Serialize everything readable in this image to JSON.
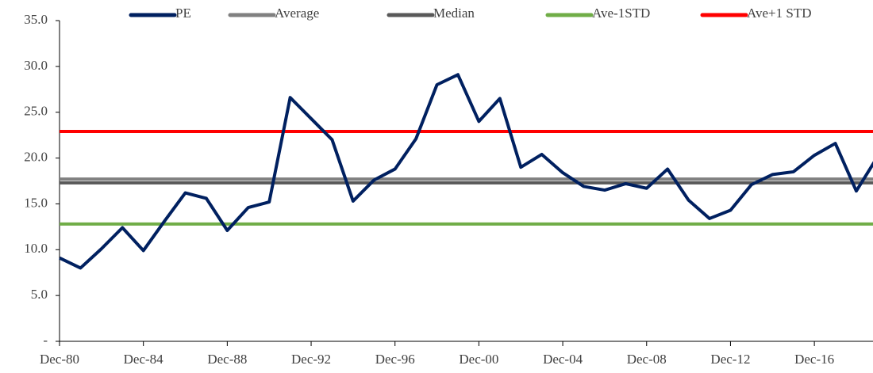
{
  "chart_data": {
    "type": "line",
    "categories": [
      "Dec-80",
      null,
      null,
      null,
      "Dec-84",
      null,
      null,
      null,
      "Dec-88",
      null,
      null,
      null,
      "Dec-92",
      null,
      null,
      null,
      "Dec-96",
      null,
      null,
      null,
      "Dec-00",
      null,
      null,
      null,
      "Dec-04",
      null,
      null,
      null,
      "Dec-08",
      null,
      null,
      null,
      "Dec-12",
      null,
      null,
      null,
      "Dec-16",
      null,
      null,
      null
    ],
    "series": [
      {
        "name": "PE",
        "color": "#002060",
        "values": [
          9.1,
          8.0,
          10.1,
          12.4,
          9.9,
          13.1,
          16.2,
          15.6,
          12.1,
          14.6,
          15.2,
          26.6,
          24.3,
          22.0,
          15.3,
          17.6,
          18.8,
          22.1,
          28.0,
          29.1,
          24.0,
          26.5,
          19.0,
          20.4,
          18.4,
          16.9,
          16.5,
          17.2,
          16.7,
          18.8,
          15.4,
          13.4,
          14.3,
          17.1,
          18.2,
          18.5,
          20.3,
          21.6,
          16.4,
          20.1
        ]
      },
      {
        "name": "Average",
        "color": "#808080",
        "values": [
          17.7,
          17.7,
          17.7,
          17.7,
          17.7,
          17.7,
          17.7,
          17.7,
          17.7,
          17.7,
          17.7,
          17.7,
          17.7,
          17.7,
          17.7,
          17.7,
          17.7,
          17.7,
          17.7,
          17.7,
          17.7,
          17.7,
          17.7,
          17.7,
          17.7,
          17.7,
          17.7,
          17.7,
          17.7,
          17.7,
          17.7,
          17.7,
          17.7,
          17.7,
          17.7,
          17.7,
          17.7,
          17.7,
          17.7,
          17.7
        ]
      },
      {
        "name": "Median",
        "color": "#595959",
        "values": [
          17.3,
          17.3,
          17.3,
          17.3,
          17.3,
          17.3,
          17.3,
          17.3,
          17.3,
          17.3,
          17.3,
          17.3,
          17.3,
          17.3,
          17.3,
          17.3,
          17.3,
          17.3,
          17.3,
          17.3,
          17.3,
          17.3,
          17.3,
          17.3,
          17.3,
          17.3,
          17.3,
          17.3,
          17.3,
          17.3,
          17.3,
          17.3,
          17.3,
          17.3,
          17.3,
          17.3,
          17.3,
          17.3,
          17.3,
          17.3
        ]
      },
      {
        "name": "Ave-1STD",
        "color": "#70ad47",
        "values": [
          12.8,
          12.8,
          12.8,
          12.8,
          12.8,
          12.8,
          12.8,
          12.8,
          12.8,
          12.8,
          12.8,
          12.8,
          12.8,
          12.8,
          12.8,
          12.8,
          12.8,
          12.8,
          12.8,
          12.8,
          12.8,
          12.8,
          12.8,
          12.8,
          12.8,
          12.8,
          12.8,
          12.8,
          12.8,
          12.8,
          12.8,
          12.8,
          12.8,
          12.8,
          12.8,
          12.8,
          12.8,
          12.8,
          12.8,
          12.8
        ]
      },
      {
        "name": "Ave+1 STD",
        "color": "#ff0000",
        "values": [
          22.9,
          22.9,
          22.9,
          22.9,
          22.9,
          22.9,
          22.9,
          22.9,
          22.9,
          22.9,
          22.9,
          22.9,
          22.9,
          22.9,
          22.9,
          22.9,
          22.9,
          22.9,
          22.9,
          22.9,
          22.9,
          22.9,
          22.9,
          22.9,
          22.9,
          22.9,
          22.9,
          22.9,
          22.9,
          22.9,
          22.9,
          22.9,
          22.9,
          22.9,
          22.9,
          22.9,
          22.9,
          22.9,
          22.9,
          22.9
        ]
      }
    ],
    "ylim": [
      0,
      35
    ],
    "yticks": [
      {
        "value": 0,
        "label": "-"
      },
      {
        "value": 5,
        "label": "5.0"
      },
      {
        "value": 10,
        "label": "10.0"
      },
      {
        "value": 15,
        "label": "15.0"
      },
      {
        "value": 20,
        "label": "20.0"
      },
      {
        "value": 25,
        "label": "25.0"
      },
      {
        "value": 30,
        "label": "30.0"
      },
      {
        "value": 35,
        "label": "35.0"
      }
    ],
    "grid": false,
    "legend": "top"
  }
}
